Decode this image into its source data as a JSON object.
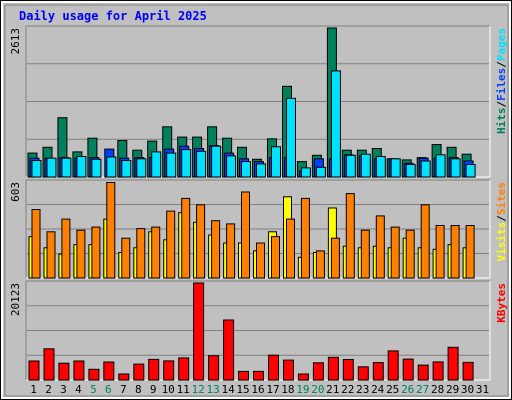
{
  "chart_data": {
    "type": "bar",
    "title": "Daily usage for April 2025",
    "categories": [
      "1",
      "2",
      "3",
      "4",
      "5",
      "6",
      "7",
      "8",
      "9",
      "10",
      "11",
      "12",
      "13",
      "14",
      "15",
      "16",
      "17",
      "18",
      "19",
      "20",
      "21",
      "22",
      "23",
      "24",
      "25",
      "26",
      "27",
      "28",
      "29",
      "30",
      "31"
    ],
    "weekend_days": [
      "5",
      "6",
      "12",
      "13",
      "19",
      "20",
      "26",
      "27"
    ],
    "colors": {
      "background": "#c0c0c0",
      "plot": "#c0c0c0",
      "title": "#0000ff",
      "hits": "#00805c",
      "files": "#0040ff",
      "pages": "#00e0ff",
      "visits": "#ffff00",
      "sites": "#ff8000",
      "kbytes": "#ff0000",
      "weekend": "#00805c",
      "weekday": "#000000"
    },
    "panels": [
      {
        "name": "hits-files-pages",
        "ymax": 2613,
        "ymax_label": "2613",
        "side_labels": [
          {
            "text": "Hits",
            "color": "#00805c"
          },
          {
            "text": "/",
            "color": "#000000"
          },
          {
            "text": "Files",
            "color": "#0040ff"
          },
          {
            "text": "/",
            "color": "#000000"
          },
          {
            "text": "Pages",
            "color": "#00e0ff"
          }
        ],
        "series": [
          {
            "name": "Hits",
            "values": [
              420,
              520,
              1040,
              440,
              680,
              0,
              640,
              470,
              630,
              880,
              700,
              700,
              880,
              680,
              520,
              310,
              670,
              1590,
              270,
              380,
              2613,
              470,
              470,
              500,
              320,
              300,
              340,
              570,
              520,
              400,
              0
            ]
          },
          {
            "name": "Files",
            "values": [
              330,
              330,
              340,
              330,
              340,
              490,
              330,
              340,
              340,
              490,
              540,
              500,
              550,
              420,
              320,
              270,
              340,
              340,
              110,
              320,
              320,
              390,
              370,
              320,
              320,
              240,
              330,
              330,
              340,
              280,
              0
            ]
          },
          {
            "name": "Pages",
            "values": [
              290,
              330,
              330,
              360,
              310,
              350,
              290,
              320,
              440,
              420,
              480,
              450,
              540,
              370,
              270,
              230,
              530,
              1380,
              160,
              170,
              1860,
              380,
              400,
              360,
              320,
              220,
              280,
              390,
              320,
              220,
              0
            ]
          }
        ]
      },
      {
        "name": "visits-sites",
        "ymax": 603,
        "ymax_label": "603",
        "side_labels": [
          {
            "text": "Visits",
            "color": "#ffff00"
          },
          {
            "text": "/",
            "color": "#000000"
          },
          {
            "text": "Sites",
            "color": "#ff8000"
          }
        ],
        "series": [
          {
            "name": "Visits",
            "values": [
              260,
              190,
              150,
              210,
              210,
              370,
              160,
              190,
              290,
              240,
              410,
              350,
              270,
              220,
              220,
              170,
              290,
              510,
              130,
              160,
              440,
              200,
              190,
              200,
              190,
              250,
              190,
              180,
              210,
              190,
              0
            ]
          },
          {
            "name": "Sites",
            "values": [
              430,
              290,
              370,
              300,
              320,
              600,
              250,
              310,
              320,
              420,
              500,
              460,
              360,
              340,
              540,
              220,
              260,
              370,
              500,
              170,
              250,
              530,
              300,
              390,
              320,
              300,
              460,
              330,
              330,
              330,
              0
            ]
          }
        ]
      },
      {
        "name": "kbytes",
        "ymax": 20123,
        "ymax_label": "20123",
        "side_labels": [
          {
            "text": "KBytes",
            "color": "#ff0000"
          }
        ],
        "series": [
          {
            "name": "KBytes",
            "values": [
              3950,
              6470,
              3480,
              3940,
              2230,
              3740,
              1250,
              3300,
              4270,
              3970,
              4590,
              20123,
              5050,
              12450,
              1790,
              1790,
              5150,
              4130,
              1250,
              3570,
              4700,
              4260,
              2730,
              3600,
              6030,
              4330,
              3100,
              3760,
              6780,
              3650,
              0
            ]
          }
        ]
      }
    ]
  }
}
